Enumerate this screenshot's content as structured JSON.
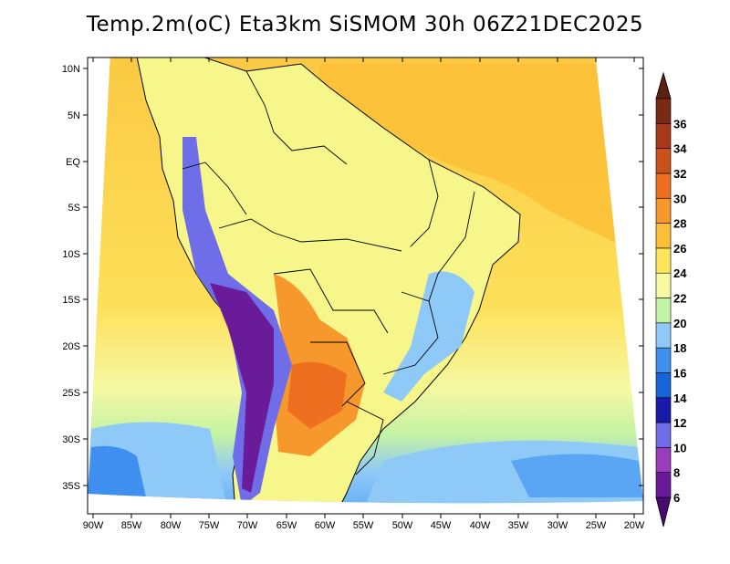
{
  "title": "Temp.2m(oC) Eta3km SiSMOM 30h 06Z21DEC2025",
  "axes": {
    "lat_labels": [
      "10N",
      "5N",
      "EQ",
      "5S",
      "10S",
      "15S",
      "20S",
      "25S",
      "30S",
      "35S"
    ],
    "lon_labels": [
      "90W",
      "85W",
      "80W",
      "75W",
      "70W",
      "65W",
      "60W",
      "55W",
      "50W",
      "45W",
      "40W",
      "35W",
      "30W",
      "25W",
      "20W"
    ]
  },
  "colorbar": {
    "levels": [
      "6",
      "8",
      "10",
      "12",
      "14",
      "16",
      "18",
      "20",
      "22",
      "24",
      "26",
      "28",
      "30",
      "32",
      "34",
      "36"
    ],
    "colors": [
      "#6a1b9a",
      "#9b3bbd",
      "#6f6ee8",
      "#1a1aa8",
      "#1665d8",
      "#3f8ff0",
      "#8ec9f8",
      "#c4f2a4",
      "#f6f9a2",
      "#fce55a",
      "#fbc037",
      "#f7982c",
      "#ee6f20",
      "#c8521a",
      "#a8381a",
      "#7a2a12"
    ],
    "min_color": "#4b0a6e",
    "max_color": "#5a2010"
  },
  "colors": {
    "ocean_north": "#fbc842",
    "ocean_south": "#b3e3f8",
    "land_lowland": "#f6f68a",
    "land_warm": "#f7982c"
  }
}
